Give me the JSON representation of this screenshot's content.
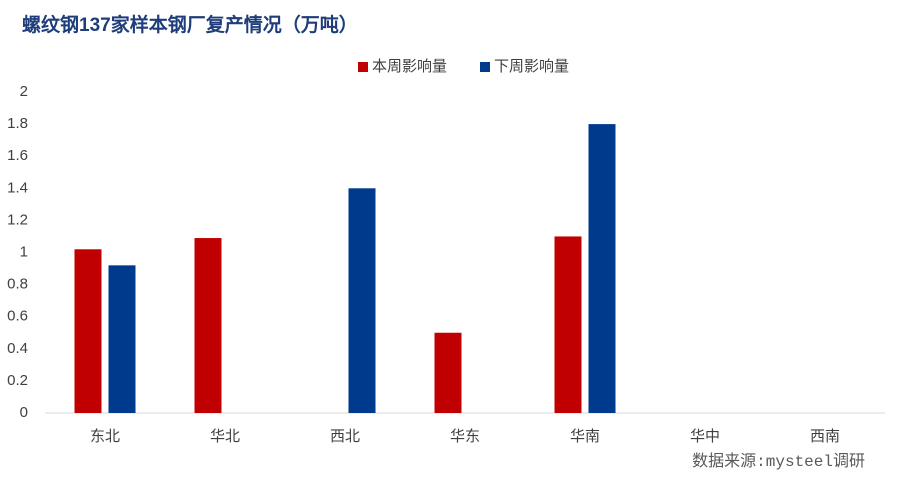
{
  "chart_data": {
    "type": "bar",
    "title": "螺纹钢137家样本钢厂复产情况（万吨）",
    "categories": [
      "东北",
      "华北",
      "西北",
      "华东",
      "华南",
      "华中",
      "西南"
    ],
    "series": [
      {
        "name": "本周影响量",
        "color": "#c00000",
        "values": [
          1.02,
          1.09,
          0,
          0.5,
          1.1,
          0,
          0
        ]
      },
      {
        "name": "下周影响量",
        "color": "#003a8c",
        "values": [
          0.92,
          0,
          1.4,
          0,
          1.8,
          0,
          0
        ]
      }
    ],
    "ylim": [
      0,
      2
    ],
    "yticks": [
      0,
      0.2,
      0.4,
      0.6,
      0.8,
      1,
      1.2,
      1.4,
      1.6,
      1.8,
      2
    ],
    "source": "数据来源:mysteel调研"
  }
}
